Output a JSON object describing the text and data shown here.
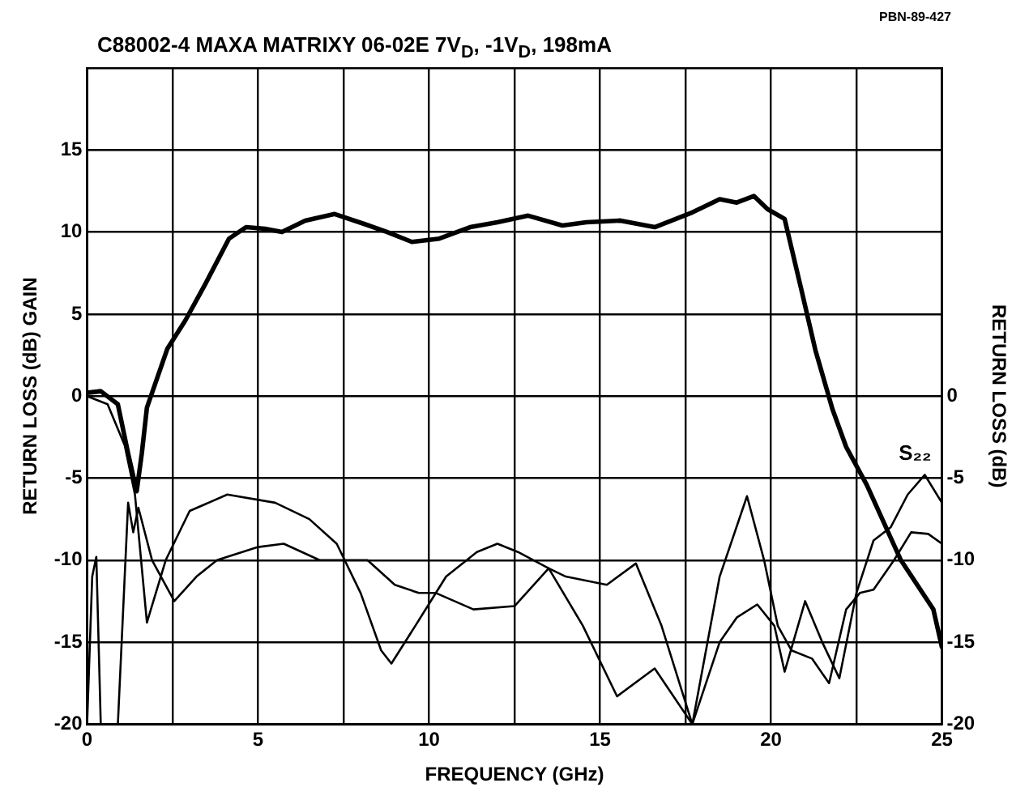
{
  "chart_data": {
    "type": "line",
    "title": "C88002-4 MAXA MATRIXY 06-02E 7V$_{D}$, -1V$_{D}$, 198mA",
    "xlabel": "FREQUENCY (GHz)",
    "ylabel": "RETURN LOSS (dB) GAIN",
    "y2label": "RETURN LOSS (dB)",
    "annotations": [
      "PBN-89-427"
    ],
    "xlim": [
      0,
      25
    ],
    "xticks": [
      0,
      {
        "value": 2.5,
        "label": null
      },
      5,
      {
        "value": 7.5,
        "label": null
      },
      10,
      {
        "value": 12.5,
        "label": null
      },
      15,
      {
        "value": 17.5,
        "label": null
      },
      20,
      {
        "value": 22.5,
        "label": null
      },
      25
    ],
    "ylim": [
      -20,
      20
    ],
    "yticks": [
      -20,
      -15,
      -10,
      -5,
      0,
      5,
      10,
      15,
      {
        "value": 20,
        "label": null
      }
    ],
    "y2lim": [
      -20,
      20
    ],
    "y2ticks": [
      -20,
      -15,
      -10,
      -5,
      0
    ],
    "grid": true,
    "legend": false,
    "marker": "none",
    "line_style": "solid",
    "series": [
      {
        "color": "#000000",
        "x": [
          0,
          0.4,
          0.9,
          1.2,
          1.45,
          1.6,
          1.75,
          2.35,
          2.87,
          3.45,
          4.15,
          4.65,
          5.2,
          5.7,
          6.38,
          7.24,
          8.1,
          8.78,
          9.5,
          10.3,
          11.2,
          12.0,
          12.9,
          13.9,
          14.6,
          15.6,
          16.6,
          17.7,
          18.5,
          19.0,
          19.5,
          19.9,
          20.4,
          20.9,
          21.3,
          21.8,
          22.2,
          22.8,
          23.8,
          24.75,
          25
        ],
        "values": [
          0.2,
          0.3,
          -0.5,
          -3.5,
          -5.8,
          -3.5,
          -0.7,
          2.9,
          4.6,
          6.8,
          9.6,
          10.3,
          10.2,
          10,
          10.7,
          11.1,
          10.5,
          10,
          9.4,
          9.6,
          10.3,
          10.6,
          11,
          10.4,
          10.6,
          10.7,
          10.3,
          11.2,
          12,
          11.8,
          12.2,
          11.4,
          10.8,
          6.4,
          2.8,
          -0.8,
          -3.1,
          -5.4,
          -10,
          -13,
          -15.3
        ]
      },
      {
        "color": "#000000",
        "axis": "y2",
        "x": [
          0,
          0.6,
          1.1,
          1.4,
          1.75,
          2.3,
          3,
          4.1,
          5.5,
          6.5,
          7.3,
          8,
          8.6,
          8.9,
          9.6,
          10.5,
          11.4,
          12,
          12.6,
          13.5,
          14.5,
          15.5,
          16.6,
          17.7,
          18.5,
          19.3,
          19.8,
          20.2,
          20.6,
          21.2,
          21.7,
          22.2,
          22.6,
          23,
          23.6,
          24.1,
          24.6,
          25
        ],
        "values": [
          0,
          -0.5,
          -3,
          -6,
          -13.8,
          -10,
          -7,
          -6,
          -6.5,
          -7.5,
          -9,
          -12,
          -15.5,
          -16.3,
          -14,
          -11,
          -9.5,
          -9,
          -9.5,
          -10.5,
          -14,
          -18.3,
          -16.6,
          -20,
          -11,
          -6.1,
          -10,
          -14,
          -15.5,
          -16,
          -17.5,
          -13,
          -12,
          -11.8,
          -10,
          -8.3,
          -8.4,
          -9
        ]
      },
      {
        "name": "S₂₂",
        "color": "#000000",
        "axis": "y2",
        "x": [
          0,
          0.15,
          0.27,
          0.4,
          0.9,
          1.2,
          1.35,
          1.5,
          1.9,
          2.55,
          3.2,
          3.8,
          5,
          5.75,
          6.8,
          8.2,
          9,
          9.7,
          10.2,
          11.3,
          12.5,
          13.5,
          14,
          15.2,
          16.05,
          16.8,
          17.7,
          18.5,
          19.0,
          19.6,
          20.1,
          20.4,
          21.0,
          21.5,
          22.0,
          22.5,
          23,
          23.5,
          24,
          24.5,
          25
        ],
        "values": [
          -20,
          -11,
          -9.8,
          -20,
          -20,
          -6.5,
          -8.3,
          -6.8,
          -10,
          -12.5,
          -11,
          -10,
          -9.2,
          -9,
          -10,
          -10,
          -11.5,
          -12,
          -12,
          -13,
          -12.8,
          -10.5,
          -11,
          -11.5,
          -10.2,
          -14,
          -20,
          -15,
          -13.5,
          -12.7,
          -14,
          -16.8,
          -12.5,
          -15,
          -17.2,
          -12,
          -8.8,
          -8,
          -6,
          -4.8,
          -6.5
        ]
      }
    ]
  }
}
